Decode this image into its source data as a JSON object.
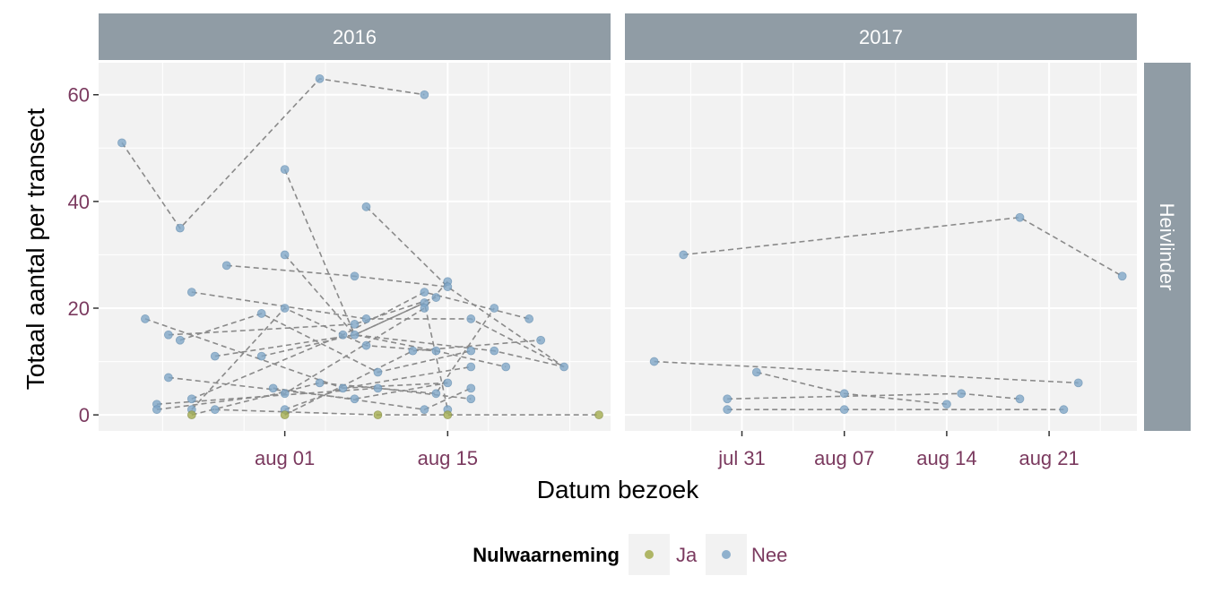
{
  "chart_data": {
    "type": "scatter",
    "xlabel": "Datum bezoek",
    "ylabel": "Totaal aantal per transect",
    "ylim": [
      -3,
      66
    ],
    "yticks": [
      0,
      20,
      40,
      60
    ],
    "row_strip": "Heivlinder",
    "colors": {
      "panel_bg": "#f2f2f2",
      "strip_bg": "#909ca5",
      "grid": "#ffffff",
      "line": "#8a8a8a",
      "Ja": "#a3ab4e",
      "Nee": "#7fa6c7"
    },
    "legend": {
      "title": "Nulwaarneming",
      "entries": [
        {
          "label": "Ja",
          "key": "Ja"
        },
        {
          "label": "Nee",
          "key": "Nee"
        }
      ],
      "position": "bottom"
    },
    "panels": [
      {
        "title": "2016",
        "xlim": [
          "2016-07-16",
          "2016-08-29"
        ],
        "xticks": [
          {
            "date": "2016-08-01",
            "label": "aug 01"
          },
          {
            "date": "2016-08-15",
            "label": "aug 15"
          }
        ],
        "points": [
          {
            "date": "2016-07-18",
            "value": 51,
            "nul": "Nee"
          },
          {
            "date": "2016-07-20",
            "value": 18,
            "nul": "Nee"
          },
          {
            "date": "2016-07-21",
            "value": 2,
            "nul": "Nee"
          },
          {
            "date": "2016-07-21",
            "value": 1,
            "nul": "Nee"
          },
          {
            "date": "2016-07-22",
            "value": 15,
            "nul": "Nee"
          },
          {
            "date": "2016-07-22",
            "value": 7,
            "nul": "Nee"
          },
          {
            "date": "2016-07-23",
            "value": 35,
            "nul": "Nee"
          },
          {
            "date": "2016-07-23",
            "value": 14,
            "nul": "Nee"
          },
          {
            "date": "2016-07-24",
            "value": 23,
            "nul": "Nee"
          },
          {
            "date": "2016-07-24",
            "value": 3,
            "nul": "Nee"
          },
          {
            "date": "2016-07-24",
            "value": 1,
            "nul": "Nee"
          },
          {
            "date": "2016-07-24",
            "value": 0,
            "nul": "Ja"
          },
          {
            "date": "2016-07-26",
            "value": 11,
            "nul": "Nee"
          },
          {
            "date": "2016-07-26",
            "value": 1,
            "nul": "Nee"
          },
          {
            "date": "2016-07-27",
            "value": 28,
            "nul": "Nee"
          },
          {
            "date": "2016-07-30",
            "value": 19,
            "nul": "Nee"
          },
          {
            "date": "2016-07-30",
            "value": 11,
            "nul": "Nee"
          },
          {
            "date": "2016-07-31",
            "value": 5,
            "nul": "Nee"
          },
          {
            "date": "2016-08-01",
            "value": 46,
            "nul": "Nee"
          },
          {
            "date": "2016-08-01",
            "value": 30,
            "nul": "Nee"
          },
          {
            "date": "2016-08-01",
            "value": 20,
            "nul": "Nee"
          },
          {
            "date": "2016-08-01",
            "value": 4,
            "nul": "Nee"
          },
          {
            "date": "2016-08-01",
            "value": 1,
            "nul": "Nee"
          },
          {
            "date": "2016-08-01",
            "value": 0,
            "nul": "Ja"
          },
          {
            "date": "2016-08-04",
            "value": 63,
            "nul": "Nee"
          },
          {
            "date": "2016-08-04",
            "value": 6,
            "nul": "Nee"
          },
          {
            "date": "2016-08-06",
            "value": 15,
            "nul": "Nee"
          },
          {
            "date": "2016-08-06",
            "value": 5,
            "nul": "Nee"
          },
          {
            "date": "2016-08-07",
            "value": 26,
            "nul": "Nee"
          },
          {
            "date": "2016-08-07",
            "value": 17,
            "nul": "Nee"
          },
          {
            "date": "2016-08-07",
            "value": 15,
            "nul": "Nee"
          },
          {
            "date": "2016-08-07",
            "value": 3,
            "nul": "Nee"
          },
          {
            "date": "2016-08-08",
            "value": 39,
            "nul": "Nee"
          },
          {
            "date": "2016-08-08",
            "value": 18,
            "nul": "Nee"
          },
          {
            "date": "2016-08-08",
            "value": 13,
            "nul": "Nee"
          },
          {
            "date": "2016-08-09",
            "value": 8,
            "nul": "Nee"
          },
          {
            "date": "2016-08-09",
            "value": 5,
            "nul": "Nee"
          },
          {
            "date": "2016-08-09",
            "value": 0,
            "nul": "Ja"
          },
          {
            "date": "2016-08-12",
            "value": 12,
            "nul": "Nee"
          },
          {
            "date": "2016-08-13",
            "value": 60,
            "nul": "Nee"
          },
          {
            "date": "2016-08-13",
            "value": 23,
            "nul": "Nee"
          },
          {
            "date": "2016-08-13",
            "value": 21,
            "nul": "Nee"
          },
          {
            "date": "2016-08-13",
            "value": 20,
            "nul": "Nee"
          },
          {
            "date": "2016-08-13",
            "value": 1,
            "nul": "Nee"
          },
          {
            "date": "2016-08-14",
            "value": 22,
            "nul": "Nee"
          },
          {
            "date": "2016-08-14",
            "value": 12,
            "nul": "Nee"
          },
          {
            "date": "2016-08-14",
            "value": 4,
            "nul": "Nee"
          },
          {
            "date": "2016-08-15",
            "value": 25,
            "nul": "Nee"
          },
          {
            "date": "2016-08-15",
            "value": 24,
            "nul": "Nee"
          },
          {
            "date": "2016-08-15",
            "value": 6,
            "nul": "Nee"
          },
          {
            "date": "2016-08-15",
            "value": 1,
            "nul": "Nee"
          },
          {
            "date": "2016-08-15",
            "value": 0,
            "nul": "Ja"
          },
          {
            "date": "2016-08-17",
            "value": 18,
            "nul": "Nee"
          },
          {
            "date": "2016-08-17",
            "value": 12,
            "nul": "Nee"
          },
          {
            "date": "2016-08-17",
            "value": 9,
            "nul": "Nee"
          },
          {
            "date": "2016-08-17",
            "value": 5,
            "nul": "Nee"
          },
          {
            "date": "2016-08-17",
            "value": 3,
            "nul": "Nee"
          },
          {
            "date": "2016-08-19",
            "value": 20,
            "nul": "Nee"
          },
          {
            "date": "2016-08-19",
            "value": 12,
            "nul": "Nee"
          },
          {
            "date": "2016-08-20",
            "value": 9,
            "nul": "Nee"
          },
          {
            "date": "2016-08-22",
            "value": 18,
            "nul": "Nee"
          },
          {
            "date": "2016-08-23",
            "value": 14,
            "nul": "Nee"
          },
          {
            "date": "2016-08-25",
            "value": 9,
            "nul": "Nee"
          },
          {
            "date": "2016-08-28",
            "value": 0,
            "nul": "Ja"
          }
        ],
        "lines": [
          [
            [
              "2016-07-18",
              51
            ],
            [
              "2016-07-23",
              35
            ],
            [
              "2016-08-04",
              63
            ],
            [
              "2016-08-13",
              60
            ]
          ],
          [
            [
              "2016-07-20",
              18
            ],
            [
              "2016-08-06",
              5
            ],
            [
              "2016-08-17",
              9
            ]
          ],
          [
            [
              "2016-07-21",
              2
            ],
            [
              "2016-08-09",
              5
            ],
            [
              "2016-08-17",
              3
            ]
          ],
          [
            [
              "2016-07-21",
              1
            ],
            [
              "2016-08-01",
              4
            ],
            [
              "2016-08-13",
              20
            ],
            [
              "2016-08-15",
              25
            ]
          ],
          [
            [
              "2016-07-22",
              15
            ],
            [
              "2016-08-07",
              17
            ],
            [
              "2016-08-14",
              22
            ]
          ],
          [
            [
              "2016-07-22",
              7
            ],
            [
              "2016-08-07",
              3
            ],
            [
              "2016-08-15",
              6
            ]
          ],
          [
            [
              "2016-07-23",
              14
            ],
            [
              "2016-07-30",
              19
            ],
            [
              "2016-08-09",
              8
            ],
            [
              "2016-08-17",
              12
            ]
          ],
          [
            [
              "2016-07-24",
              23
            ],
            [
              "2016-08-08",
              18
            ],
            [
              "2016-08-17",
              18
            ],
            [
              "2016-08-25",
              9
            ]
          ],
          [
            [
              "2016-07-24",
              3
            ],
            [
              "2016-08-06",
              15
            ],
            [
              "2016-08-13",
              23
            ],
            [
              "2016-08-22",
              18
            ]
          ],
          [
            [
              "2016-07-24",
              1
            ],
            [
              "2016-08-01",
              20
            ],
            [
              "2016-08-08",
              13
            ],
            [
              "2016-08-14",
              12
            ]
          ],
          [
            [
              "2016-07-24",
              0
            ],
            [
              "2016-08-04",
              6
            ],
            [
              "2016-08-14",
              4
            ],
            [
              "2016-08-19",
              20
            ]
          ],
          [
            [
              "2016-07-26",
              11
            ],
            [
              "2016-08-07",
              15
            ],
            [
              "2016-08-19",
              12
            ],
            [
              "2016-08-25",
              9
            ]
          ],
          [
            [
              "2016-07-26",
              1
            ],
            [
              "2016-08-09",
              0
            ],
            [
              "2016-08-28",
              0
            ]
          ],
          [
            [
              "2016-07-27",
              28
            ],
            [
              "2016-08-07",
              26
            ],
            [
              "2016-08-15",
              24
            ]
          ],
          [
            [
              "2016-07-30",
              11
            ],
            [
              "2016-08-07",
              15
            ],
            [
              "2016-08-13",
              21
            ]
          ],
          [
            [
              "2016-07-31",
              5
            ],
            [
              "2016-08-13",
              1
            ],
            [
              "2016-08-17",
              5
            ]
          ],
          [
            [
              "2016-08-01",
              46
            ],
            [
              "2016-08-07",
              15
            ],
            [
              "2016-08-13",
              21
            ],
            [
              "2016-08-15",
              1
            ]
          ],
          [
            [
              "2016-08-01",
              30
            ],
            [
              "2016-08-07",
              15
            ],
            [
              "2016-08-14",
              12
            ],
            [
              "2016-08-20",
              9
            ]
          ],
          [
            [
              "2016-08-01",
              1
            ],
            [
              "2016-08-06",
              5
            ],
            [
              "2016-08-15",
              6
            ]
          ],
          [
            [
              "2016-08-01",
              0
            ],
            [
              "2016-08-12",
              12
            ],
            [
              "2016-08-23",
              14
            ]
          ],
          [
            [
              "2016-08-08",
              39
            ],
            [
              "2016-08-15",
              24
            ],
            [
              "2016-08-25",
              9
            ]
          ]
        ]
      },
      {
        "title": "2017",
        "xlim": [
          "2017-07-23",
          "2017-08-27"
        ],
        "xticks": [
          {
            "date": "2017-07-31",
            "label": "jul 31"
          },
          {
            "date": "2017-08-07",
            "label": "aug 07"
          },
          {
            "date": "2017-08-14",
            "label": "aug 14"
          },
          {
            "date": "2017-08-21",
            "label": "aug 21"
          }
        ],
        "points": [
          {
            "date": "2017-07-25",
            "value": 10,
            "nul": "Nee"
          },
          {
            "date": "2017-07-27",
            "value": 30,
            "nul": "Nee"
          },
          {
            "date": "2017-07-30",
            "value": 3,
            "nul": "Nee"
          },
          {
            "date": "2017-07-30",
            "value": 1,
            "nul": "Nee"
          },
          {
            "date": "2017-08-01",
            "value": 8,
            "nul": "Nee"
          },
          {
            "date": "2017-08-07",
            "value": 4,
            "nul": "Nee"
          },
          {
            "date": "2017-08-07",
            "value": 1,
            "nul": "Nee"
          },
          {
            "date": "2017-08-14",
            "value": 2,
            "nul": "Nee"
          },
          {
            "date": "2017-08-15",
            "value": 4,
            "nul": "Nee"
          },
          {
            "date": "2017-08-19",
            "value": 37,
            "nul": "Nee"
          },
          {
            "date": "2017-08-19",
            "value": 3,
            "nul": "Nee"
          },
          {
            "date": "2017-08-22",
            "value": 1,
            "nul": "Nee"
          },
          {
            "date": "2017-08-23",
            "value": 6,
            "nul": "Nee"
          },
          {
            "date": "2017-08-26",
            "value": 26,
            "nul": "Nee"
          }
        ],
        "lines": [
          [
            [
              "2017-07-27",
              30
            ],
            [
              "2017-08-19",
              37
            ],
            [
              "2017-08-26",
              26
            ]
          ],
          [
            [
              "2017-07-25",
              10
            ],
            [
              "2017-08-23",
              6
            ]
          ],
          [
            [
              "2017-08-01",
              8
            ],
            [
              "2017-08-07",
              4
            ],
            [
              "2017-08-14",
              2
            ]
          ],
          [
            [
              "2017-07-30",
              3
            ],
            [
              "2017-08-15",
              4
            ],
            [
              "2017-08-19",
              3
            ]
          ],
          [
            [
              "2017-07-30",
              1
            ],
            [
              "2017-08-07",
              1
            ],
            [
              "2017-08-22",
              1
            ]
          ]
        ]
      }
    ]
  }
}
